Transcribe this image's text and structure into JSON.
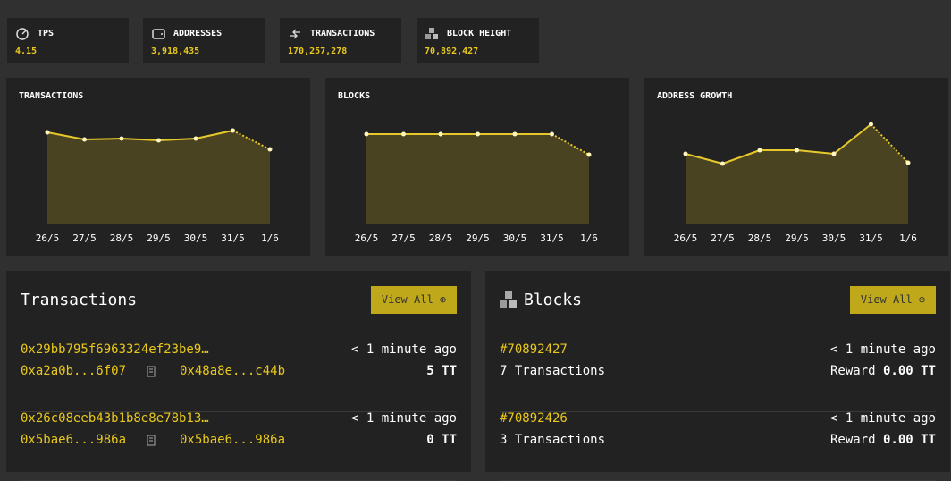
{
  "stats": [
    {
      "label": "TPS",
      "value": "4.15"
    },
    {
      "label": "ADDRESSES",
      "value": "3,918,435"
    },
    {
      "label": "TRANSACTIONS",
      "value": "170,257,278"
    },
    {
      "label": "BLOCK HEIGHT",
      "value": "70,892,427"
    }
  ],
  "charts": [
    {
      "title": "TRANSACTIONS",
      "categories": [
        "26/5",
        "27/5",
        "28/5",
        "29/5",
        "30/5",
        "31/5",
        "1/6"
      ],
      "values": [
        103,
        95,
        96,
        94,
        96,
        105,
        84
      ]
    },
    {
      "title": "BLOCKS",
      "categories": [
        "26/5",
        "27/5",
        "28/5",
        "29/5",
        "30/5",
        "31/5",
        "1/6"
      ],
      "values": [
        101,
        101,
        101,
        101,
        101,
        101,
        78
      ]
    },
    {
      "title": "ADDRESS GROWTH",
      "categories": [
        "26/5",
        "27/5",
        "28/5",
        "29/5",
        "30/5",
        "31/5",
        "1/6"
      ],
      "values": [
        79,
        68,
        83,
        83,
        79,
        112,
        69
      ]
    }
  ],
  "transactions": {
    "title": "Transactions",
    "button": "View All",
    "rows": [
      {
        "hash": "0x29bb795f6963324ef23be9…",
        "time": "< 1 minute ago",
        "from": "0xa2a0b...6f07",
        "to": "0x48a8e...c44b",
        "amount": "5 TT"
      },
      {
        "hash": "0x26c08eeb43b1b8e8e78b13…",
        "time": "< 1 minute ago",
        "from": "0x5bae6...986a",
        "to": "0x5bae6...986a",
        "amount": "0 TT"
      }
    ]
  },
  "blocks": {
    "title": "Blocks",
    "button": "View All",
    "rows": [
      {
        "number": "#70892427",
        "time": "< 1 minute ago",
        "transactions": "7 Transactions",
        "reward_label": "Reward",
        "reward": "0.00 TT"
      },
      {
        "number": "#70892426",
        "time": "< 1 minute ago",
        "transactions": "3 Transactions",
        "reward_label": "Reward",
        "reward": "0.00 TT"
      }
    ]
  }
}
